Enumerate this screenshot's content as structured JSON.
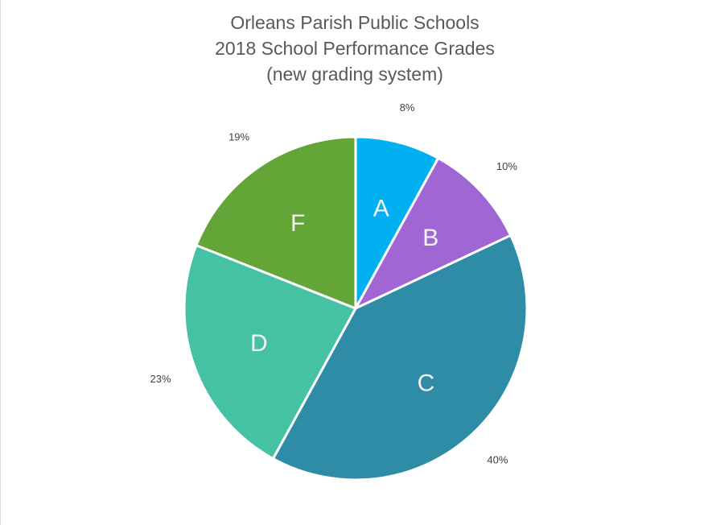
{
  "chart_data": {
    "type": "pie",
    "title": [
      "Orleans Parish Public Schools",
      "2018 School Performance Grades",
      "(new grading system)"
    ],
    "slices": [
      {
        "category": "A",
        "value": 8,
        "label": "8%",
        "color": "#00b0f0"
      },
      {
        "category": "B",
        "value": 10,
        "label": "10%",
        "color": "#a066d3"
      },
      {
        "category": "C",
        "value": 40,
        "label": "40%",
        "color": "#2e8ca6"
      },
      {
        "category": "D",
        "value": 23,
        "label": "23%",
        "color": "#45c1a4"
      },
      {
        "category": "F",
        "value": 19,
        "label": "19%",
        "color": "#63a537"
      }
    ],
    "start_angle": "12 o'clock",
    "direction": "clockwise",
    "legend": "none"
  }
}
